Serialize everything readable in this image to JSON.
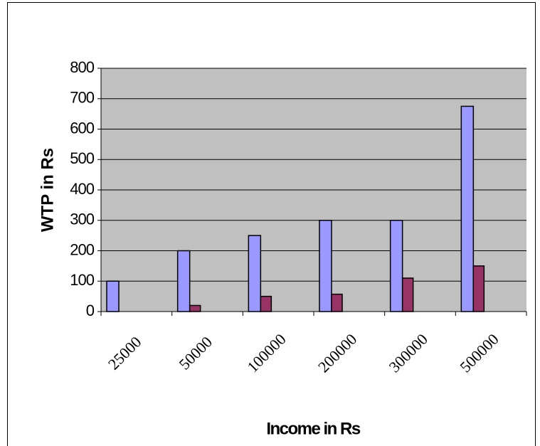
{
  "chart_data": {
    "type": "bar",
    "x_label": "Income in Rs",
    "y_label": "WTP in Rs",
    "categories": [
      "25000",
      "50000",
      "100000",
      "200000",
      "300000",
      "500000"
    ],
    "series": [
      {
        "color": "#9999ff",
        "values": [
          100,
          200,
          250,
          300,
          300,
          675
        ]
      },
      {
        "color": "#993366",
        "values": [
          0,
          20,
          50,
          57,
          110,
          150
        ]
      }
    ],
    "ylim": [
      0,
      800
    ],
    "yticks": [
      0,
      100,
      200,
      300,
      400,
      500,
      600,
      700,
      800
    ],
    "grid": true
  }
}
